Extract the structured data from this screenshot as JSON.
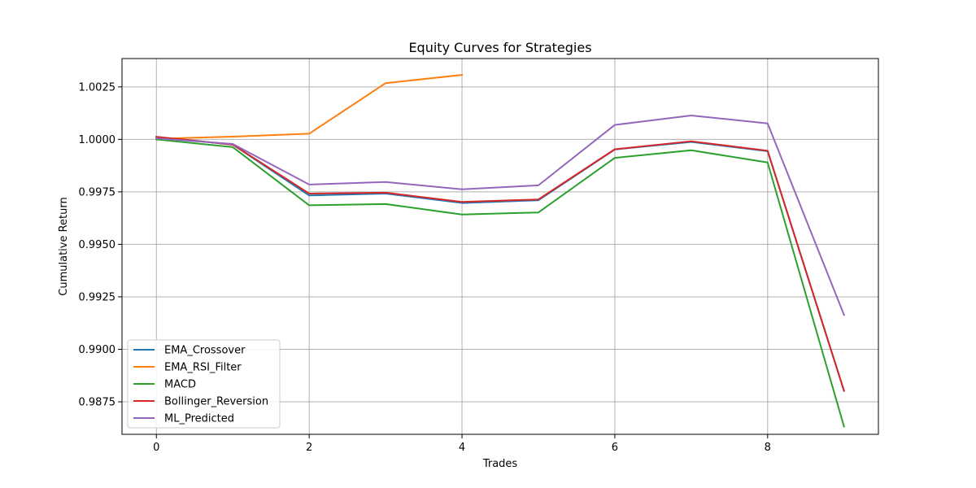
{
  "chart_data": {
    "type": "line",
    "title": "Equity Curves for Strategies",
    "xlabel": "Trades",
    "ylabel": "Cumulative Return",
    "xlim": [
      -0.45,
      9.45
    ],
    "ylim": [
      0.98595,
      1.00385
    ],
    "xticks": [
      0,
      2,
      4,
      6,
      8
    ],
    "xtick_labels": [
      "0",
      "2",
      "4",
      "6",
      "8"
    ],
    "yticks": [
      0.9875,
      0.99,
      0.9925,
      0.995,
      0.9975,
      1.0,
      1.0025
    ],
    "ytick_labels": [
      "0.9875",
      "0.9900",
      "0.9925",
      "0.9950",
      "0.9975",
      "1.0000",
      "1.0025"
    ],
    "grid": true,
    "legend_position": "lower-left",
    "series": [
      {
        "name": "EMA_Crossover",
        "color": "#1f77b4",
        "x": [
          0,
          1,
          2,
          3,
          4,
          5,
          6,
          7,
          8,
          9
        ],
        "y": [
          1.00012,
          0.99975,
          0.99733,
          0.99742,
          0.99697,
          0.9971,
          0.99952,
          0.99988,
          0.99944,
          0.98802
        ]
      },
      {
        "name": "EMA_RSI_Filter",
        "color": "#ff7f0e",
        "x": [
          0,
          1,
          2,
          3,
          4
        ],
        "y": [
          1.00003,
          1.00013,
          1.00027,
          1.00268,
          1.00307
        ]
      },
      {
        "name": "MACD",
        "color": "#2ca02c",
        "x": [
          0,
          1,
          2,
          3,
          4,
          5,
          6,
          7,
          8,
          9
        ],
        "y": [
          1.0,
          0.99963,
          0.99686,
          0.99692,
          0.99642,
          0.99652,
          0.99912,
          0.99948,
          0.9989,
          0.98632
        ]
      },
      {
        "name": "Bollinger_Reversion",
        "color": "#d62728",
        "x": [
          0,
          1,
          2,
          3,
          4,
          5,
          6,
          7,
          8,
          9
        ],
        "y": [
          1.00012,
          0.99975,
          0.99742,
          0.99746,
          0.99702,
          0.99714,
          0.99953,
          0.99991,
          0.99946,
          0.98803
        ]
      },
      {
        "name": "ML_Predicted",
        "color": "#9467bd",
        "x": [
          0,
          1,
          2,
          3,
          4,
          5,
          6,
          7,
          8,
          9
        ],
        "y": [
          1.00005,
          0.99978,
          0.99785,
          0.99797,
          0.99762,
          0.99781,
          1.00069,
          1.00114,
          1.00076,
          0.99164
        ]
      }
    ]
  }
}
